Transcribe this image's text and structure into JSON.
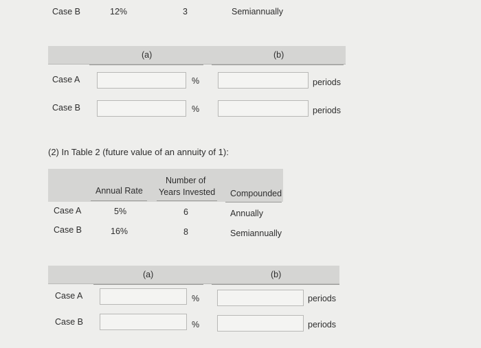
{
  "top_row": {
    "case": "Case B",
    "rate": "12%",
    "years": "3",
    "compounded": "Semiannually"
  },
  "section1": {
    "col_a": "(a)",
    "col_b": "(b)",
    "rows": [
      {
        "case": "Case A",
        "pct": "%",
        "unit": "periods"
      },
      {
        "case": "Case B",
        "pct": "%",
        "unit": "periods"
      }
    ]
  },
  "section2": {
    "heading": "(2) In Table 2 (future value of an annuity of 1):",
    "headers": {
      "rate": "Annual Rate",
      "years_line1": "Number of",
      "years_line2": "Years Invested",
      "compounded": "Compounded"
    },
    "rows": [
      {
        "case": "Case A",
        "rate": "5%",
        "years": "6",
        "compounded": "Annually"
      },
      {
        "case": "Case B",
        "rate": "16%",
        "years": "8",
        "compounded": "Semiannually"
      }
    ]
  },
  "section3": {
    "col_a": "(a)",
    "col_b": "(b)",
    "rows": [
      {
        "case": "Case A",
        "pct": "%",
        "unit": "periods"
      },
      {
        "case": "Case B",
        "pct": "%",
        "unit": "periods"
      }
    ]
  }
}
